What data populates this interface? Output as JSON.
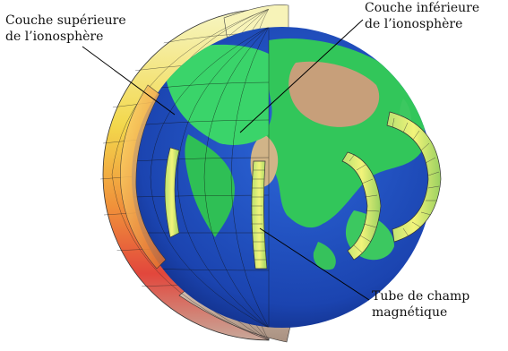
{
  "labels": {
    "upper_layer": {
      "line1": "Couche supérieure",
      "line2": "de l’ionosphère"
    },
    "lower_layer": {
      "line1": "Couche inférieure",
      "line2": "de l’ionosphère"
    },
    "flux_tube": {
      "line1": "Tube de champ",
      "line2": "magnétique"
    }
  },
  "colors": {
    "ocean": "#1f4fc0",
    "land": "#2fcf4f",
    "desert": "#c8a278",
    "upper_shell_top": "#f4f4b0",
    "upper_shell_mid": "#f0c040",
    "upper_shell_bottom": "#e84040",
    "tube": "#e8f070",
    "grid": "#1a1a1a"
  }
}
